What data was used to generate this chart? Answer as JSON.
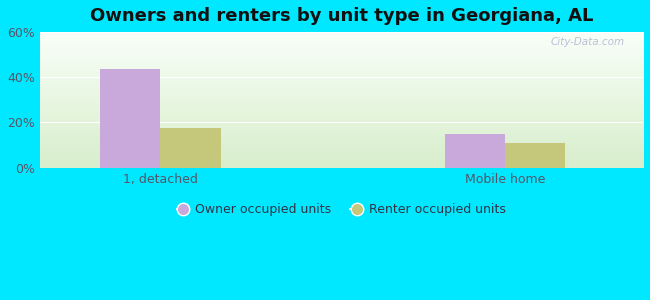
{
  "title": "Owners and renters by unit type in Georgiana, AL",
  "categories": [
    "1, detached",
    "Mobile home"
  ],
  "owner_values": [
    43.5,
    15.0
  ],
  "renter_values": [
    17.5,
    11.0
  ],
  "owner_color": "#c9a8dc",
  "renter_color": "#c5c87a",
  "ylim": [
    0,
    60
  ],
  "yticks": [
    0,
    20,
    40,
    60
  ],
  "ytick_labels": [
    "0%",
    "20%",
    "40%",
    "60%"
  ],
  "outer_bg": "#00e8ff",
  "bar_width": 0.35,
  "group_positions": [
    1.0,
    3.0
  ],
  "legend_labels": [
    "Owner occupied units",
    "Renter occupied units"
  ],
  "watermark": "City-Data.com",
  "title_fontsize": 13,
  "axis_fontsize": 9,
  "legend_fontsize": 9,
  "xlim": [
    0.3,
    3.8
  ]
}
